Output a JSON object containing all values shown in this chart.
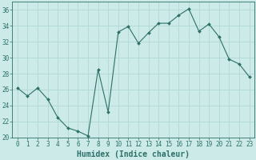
{
  "x": [
    0,
    1,
    2,
    3,
    4,
    5,
    6,
    7,
    8,
    9,
    10,
    11,
    12,
    13,
    14,
    15,
    16,
    17,
    18,
    19,
    20,
    21,
    22,
    23
  ],
  "y": [
    26.2,
    25.2,
    26.2,
    24.8,
    22.5,
    21.2,
    20.8,
    20.2,
    28.5,
    23.2,
    33.2,
    33.9,
    31.8,
    33.1,
    34.3,
    34.3,
    35.3,
    36.1,
    33.3,
    34.2,
    32.6,
    29.8,
    29.2,
    27.6
  ],
  "line_color": "#2d7068",
  "marker": "D",
  "marker_size": 2.0,
  "bg_color": "#cceae7",
  "grid_color": "#b0d8d4",
  "xlabel": "Humidex (Indice chaleur)",
  "ylim": [
    20,
    37
  ],
  "xlim": [
    -0.5,
    23.5
  ],
  "yticks": [
    20,
    22,
    24,
    26,
    28,
    30,
    32,
    34,
    36
  ],
  "xticks": [
    0,
    1,
    2,
    3,
    4,
    5,
    6,
    7,
    8,
    9,
    10,
    11,
    12,
    13,
    14,
    15,
    16,
    17,
    18,
    19,
    20,
    21,
    22,
    23
  ],
  "tick_color": "#2d7068",
  "label_fontsize": 5.5,
  "xlabel_fontsize": 7.0
}
